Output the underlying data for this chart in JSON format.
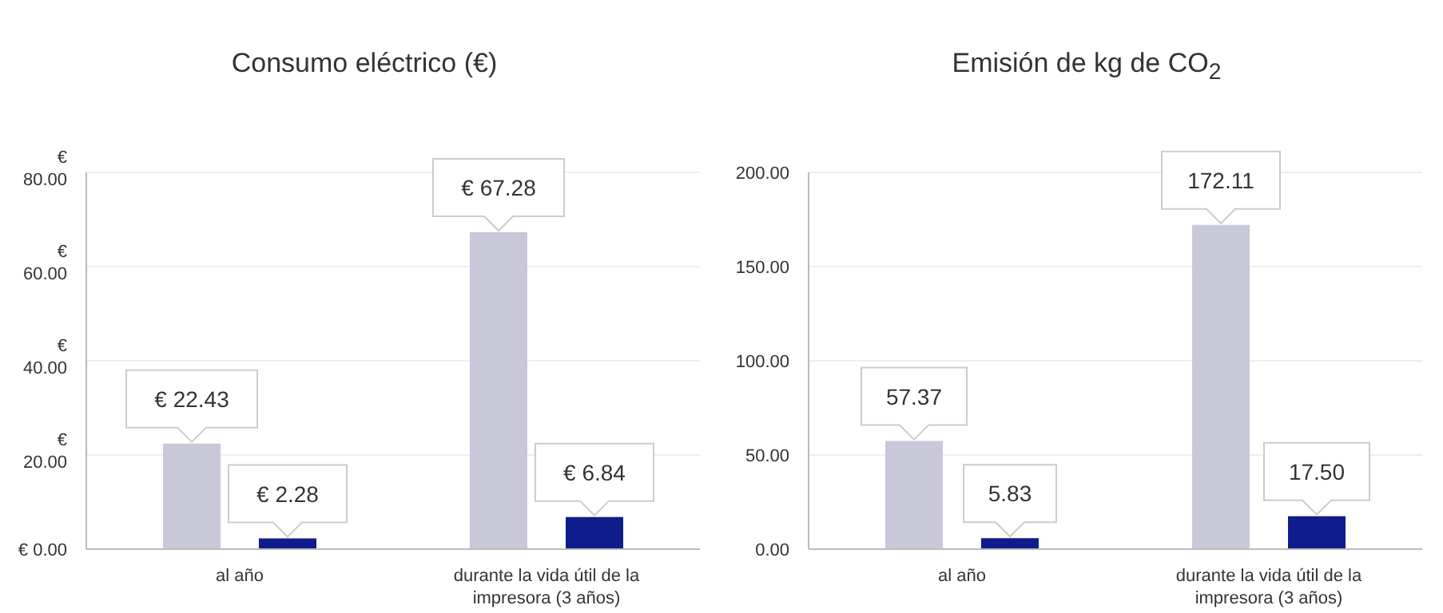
{
  "chart_data": [
    {
      "type": "bar",
      "title": "Consumo eléctrico (€)",
      "categories": [
        "al año",
        "durante la vida útil de la impresora (3 años)"
      ],
      "series": [
        {
          "color": "#c8c8d8",
          "values": [
            22.43,
            67.28
          ],
          "value_labels": [
            "€ 22.43",
            "€ 67.28"
          ]
        },
        {
          "color": "#0f1c8c",
          "values": [
            2.28,
            6.84
          ],
          "value_labels": [
            "€ 2.28",
            "€ 6.84"
          ]
        }
      ],
      "ylim": [
        0,
        80
      ],
      "yticks": [
        {
          "value": 0,
          "label": "€ 0.00"
        },
        {
          "value": 20,
          "label": "€ 20.00"
        },
        {
          "value": 40,
          "label": "€ 40.00"
        },
        {
          "value": 60,
          "label": "€ 60.00"
        },
        {
          "value": 80,
          "label": "€ 80.00"
        }
      ],
      "grid": "y",
      "legend": false
    },
    {
      "type": "bar",
      "title": "Emisión de kg de CO$_{2}$",
      "categories": [
        "al año",
        "durante la vida útil de la impresora (3 años)"
      ],
      "series": [
        {
          "color": "#c8c8d8",
          "values": [
            57.37,
            172.11
          ],
          "value_labels": [
            "57.37",
            "172.11"
          ]
        },
        {
          "color": "#0f1c8c",
          "values": [
            5.83,
            17.5
          ],
          "value_labels": [
            "5.83",
            "17.50"
          ]
        }
      ],
      "ylim": [
        0,
        200
      ],
      "yticks": [
        {
          "value": 0,
          "label": "0.00"
        },
        {
          "value": 50,
          "label": "50.00"
        },
        {
          "value": 100,
          "label": "100.00"
        },
        {
          "value": 150,
          "label": "150.00"
        },
        {
          "value": 200,
          "label": "200.00"
        }
      ],
      "grid": "y",
      "legend": false
    }
  ]
}
